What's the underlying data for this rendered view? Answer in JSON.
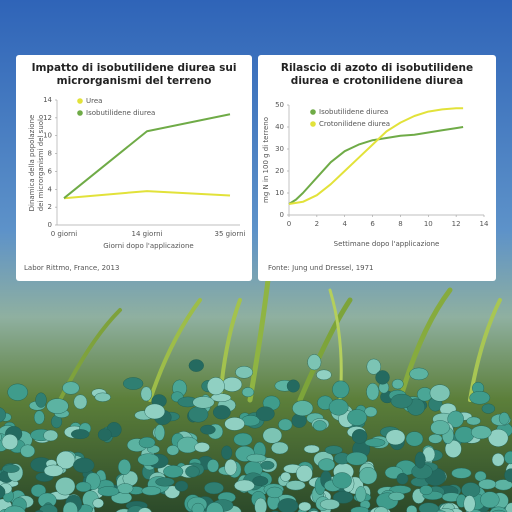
{
  "chart_data": [
    {
      "type": "line",
      "title": "Impatto di isobutilidene diurea sui microrganismi del terreno",
      "ylabel": "Dinamica della popolazione dei microrganismi del suolo",
      "xlabel": "Giorni dopo l'applicazione",
      "source": "Labor Rittmo, France, 2013",
      "categories": [
        "0 giorni",
        "14 giorni",
        "35 giorni"
      ],
      "series": [
        {
          "name": "Urea",
          "color": "#e2e23a",
          "values": [
            3,
            3.8,
            3.3
          ]
        },
        {
          "name": "Isobutilidene diurea",
          "color": "#6fab47",
          "values": [
            3,
            10.5,
            12.4
          ]
        }
      ],
      "ylim": [
        0,
        14
      ],
      "yticks": [
        0,
        2,
        4,
        6,
        8,
        10,
        12,
        14
      ],
      "grid": false
    },
    {
      "type": "line",
      "title": "Rilascio di azoto di isobutilidene diurea e crotonilidene diurea",
      "ylabel": "mg N in 100 g di terreno",
      "xlabel": "Settimane dopo l'applicazione",
      "source": "Fonte: Jung und Dressel, 1971",
      "x": [
        0,
        0.5,
        1,
        2,
        3,
        4,
        5,
        6,
        7,
        8,
        9,
        10,
        11,
        12,
        12.5
      ],
      "series": [
        {
          "name": "Isobutilidene diurea",
          "color": "#6fab47",
          "values": [
            5,
            7,
            10,
            17,
            24,
            29,
            32,
            34,
            35,
            36,
            36.5,
            37.5,
            38.5,
            39.5,
            40
          ]
        },
        {
          "name": "Crotonilidene diurea",
          "color": "#e2e23a",
          "values": [
            5,
            5.5,
            6,
            9,
            14,
            20,
            26,
            32,
            38,
            42,
            45,
            47,
            48,
            48.5,
            48.5
          ]
        }
      ],
      "xlim": [
        0,
        14
      ],
      "xticks": [
        0,
        2,
        4,
        6,
        8,
        10,
        12,
        14
      ],
      "ylim": [
        0,
        50
      ],
      "yticks": [
        0,
        10,
        20,
        30,
        40,
        50
      ],
      "grid": false
    }
  ]
}
